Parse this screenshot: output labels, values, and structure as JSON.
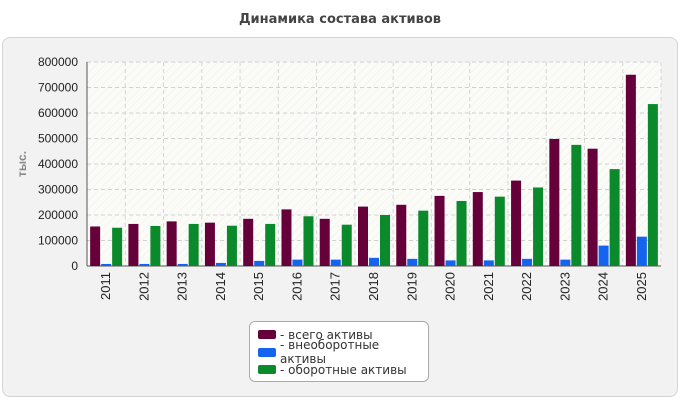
{
  "chart_data": {
    "type": "bar",
    "title": "Динамика состава активов",
    "ylabel": "тыс.",
    "xlabel": "",
    "ylim": [
      0,
      800000
    ],
    "yticks": [
      0,
      100000,
      200000,
      300000,
      400000,
      500000,
      600000,
      700000,
      800000
    ],
    "grid": true,
    "legend_position": "bottom",
    "categories": [
      "2011",
      "2012",
      "2013",
      "2014",
      "2015",
      "2016",
      "2017",
      "2018",
      "2019",
      "2020",
      "2021",
      "2022",
      "2023",
      "2024",
      "2025"
    ],
    "series": [
      {
        "name": "- всего активы",
        "color": "#66003a",
        "values": [
          155000,
          165000,
          175000,
          170000,
          185000,
          222000,
          185000,
          233000,
          240000,
          275000,
          290000,
          335000,
          498000,
          460000,
          750000
        ]
      },
      {
        "name": "- внеоборотные активы",
        "color": "#1464f0",
        "values": [
          8000,
          8000,
          8000,
          12000,
          20000,
          25000,
          25000,
          32000,
          28000,
          22000,
          22000,
          28000,
          25000,
          80000,
          115000
        ]
      },
      {
        "name": "- оборотные активы",
        "color": "#0a8a2a",
        "values": [
          150000,
          157000,
          165000,
          158000,
          165000,
          195000,
          162000,
          200000,
          217000,
          255000,
          272000,
          308000,
          475000,
          380000,
          635000
        ]
      }
    ]
  }
}
